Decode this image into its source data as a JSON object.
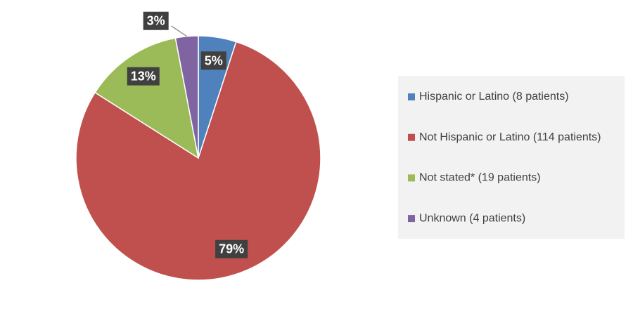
{
  "chart_data": {
    "type": "pie",
    "categories": [
      "Hispanic or Latino (8 patients)",
      "Not Hispanic or Latino (114 patients)",
      "Not stated* (19 patients)",
      "Unknown (4 patients)"
    ],
    "values": [
      5,
      79,
      13,
      3
    ],
    "value_labels": [
      "5%",
      "79%",
      "13%",
      "3%"
    ],
    "colors": [
      "#4f81bd",
      "#c0504d",
      "#9bbb59",
      "#8064a2"
    ],
    "legend": "right"
  }
}
